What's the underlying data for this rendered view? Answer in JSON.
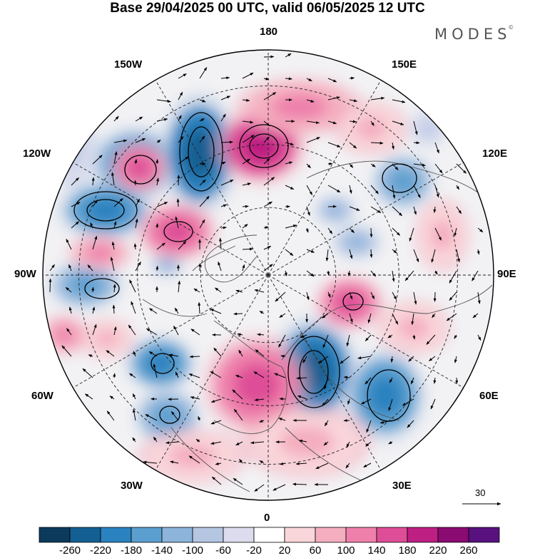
{
  "title": "Base 29/04/2025 00 UTC, valid 06/05/2025 12 UTC",
  "logo": "MODES",
  "logo_mark": "©",
  "longitude_labels": {
    "top": "180",
    "bottom": "0",
    "left": "90W",
    "right": "90E",
    "upper_left": "150W",
    "upper_right": "150E",
    "mid_upper_left": "120W",
    "mid_upper_right": "120E",
    "mid_lower_left": "60W",
    "mid_lower_right": "60E",
    "lower_left": "30W",
    "lower_right": "30E"
  },
  "reference_vector": "30",
  "colorbar": {
    "labels": [
      "-260",
      "-220",
      "-180",
      "-140",
      "-100",
      "-60",
      "-20",
      "20",
      "60",
      "100",
      "140",
      "180",
      "220",
      "260"
    ],
    "colors": [
      "#0c3a5c",
      "#135f92",
      "#2a82bf",
      "#5a9fcf",
      "#8db4da",
      "#b5c6e3",
      "#dcdcee",
      "#ffffff",
      "#f9d6d9",
      "#f4aebf",
      "#ee80ab",
      "#de4d97",
      "#bd1f82",
      "#8a0b72",
      "#58117e"
    ]
  },
  "colors": {
    "land_outline": "#555555",
    "grid_line": "#222222",
    "circle_outline": "#000000"
  }
}
